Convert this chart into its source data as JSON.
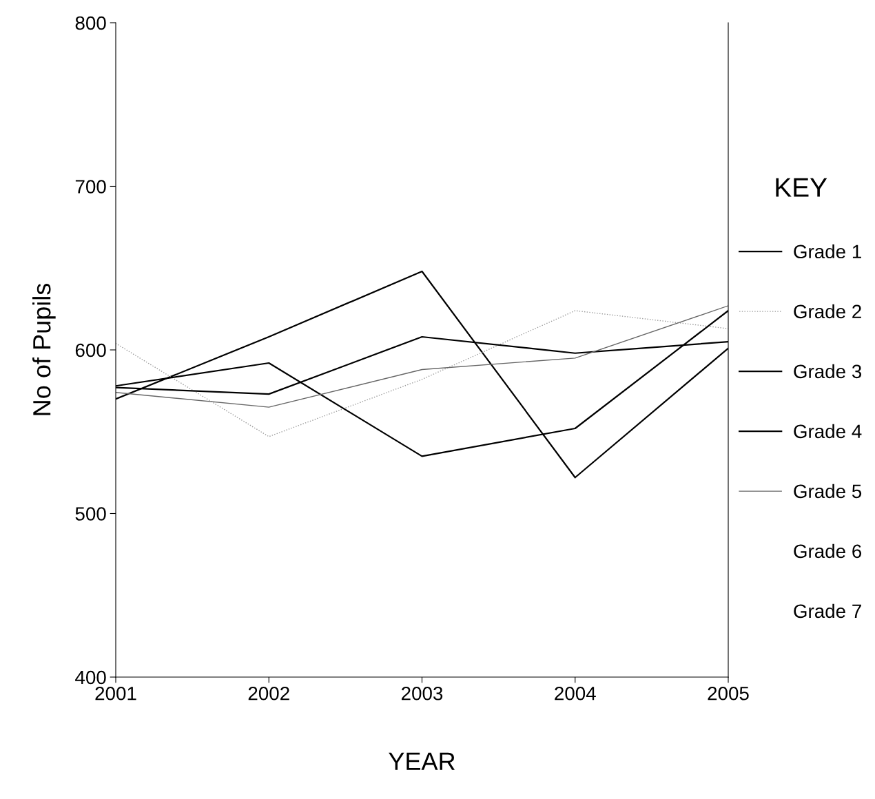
{
  "chart_data": {
    "type": "line",
    "xlabel": "YEAR",
    "ylabel": "No of Pupils",
    "legend_title": "KEY",
    "legend": "right",
    "grid": false,
    "marker": "none",
    "x": [
      2001,
      2002,
      2003,
      2004,
      2005
    ],
    "xlim": [
      2001,
      2005
    ],
    "xticks": [
      2001,
      2002,
      2003,
      2004,
      2005
    ],
    "ylim": [
      400,
      800
    ],
    "yticks": [
      400,
      500,
      600,
      700,
      800
    ],
    "series": [
      {
        "name": "Grade 1",
        "color": "#000000",
        "line_style": "solid",
        "values": [
          570,
          608,
          648,
          522,
          601
        ]
      },
      {
        "name": "Grade 2",
        "color": "#9a9a9a",
        "line_style": "dotted",
        "values": [
          604,
          547,
          582,
          624,
          613
        ]
      },
      {
        "name": "Grade 3",
        "color": "#000000",
        "line_style": "solid",
        "values": [
          577,
          573,
          608,
          598,
          605
        ]
      },
      {
        "name": "Grade 4",
        "color": "#000000",
        "line_style": "solid",
        "values": [
          578,
          592,
          535,
          552,
          624
        ]
      },
      {
        "name": "Grade 5",
        "color": "#666666",
        "line_style": "solid",
        "values": [
          574,
          565,
          588,
          595,
          627
        ]
      },
      {
        "name": "Grade 6",
        "values": [
          null,
          null,
          null,
          null,
          null
        ]
      },
      {
        "name": "Grade 7",
        "values": [
          null,
          null,
          null,
          null,
          null
        ]
      }
    ]
  }
}
